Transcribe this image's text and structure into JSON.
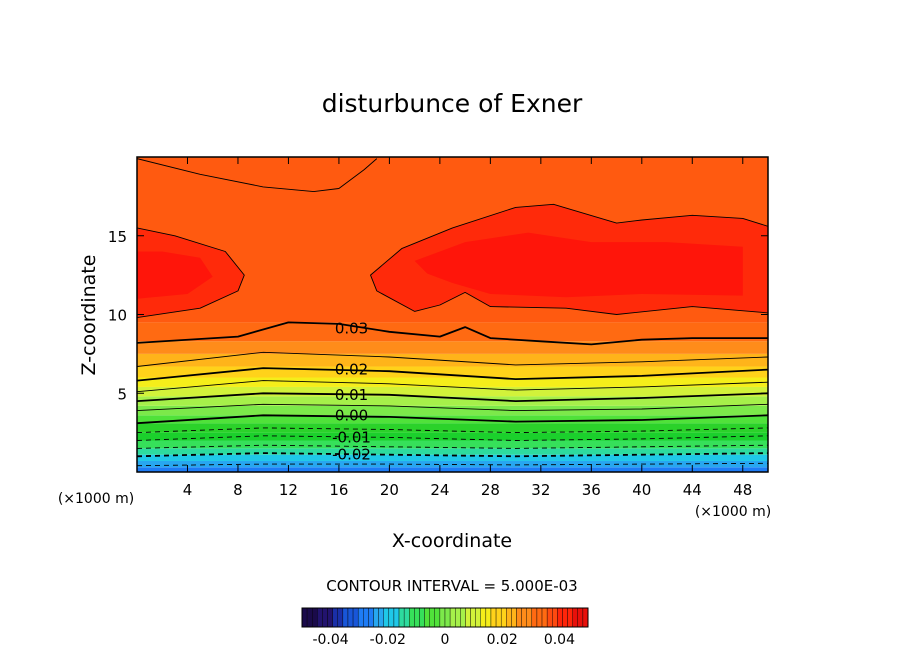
{
  "chart_data": {
    "type": "contour",
    "title": "disturbunce of Exner",
    "xlabel": "X-coordinate",
    "ylabel": "Z-coordinate",
    "x_unit_left": "(×1000 m)",
    "x_unit_right": "(×1000 m)",
    "xlim": [
      0,
      50
    ],
    "ylim": [
      0,
      20
    ],
    "x_ticks": [
      4,
      8,
      12,
      16,
      20,
      24,
      28,
      32,
      36,
      40,
      44,
      48
    ],
    "y_ticks": [
      5,
      10,
      15
    ],
    "contour_interval_text": "CONTOUR INTERVAL = 5.000E-03",
    "contour_labels": [
      {
        "text": "0.03",
        "x": 17.0,
        "z": 9.1
      },
      {
        "text": "0.02",
        "x": 17.0,
        "z": 6.5
      },
      {
        "text": "0.01",
        "x": 17.0,
        "z": 4.9
      },
      {
        "text": "0.00",
        "x": 17.0,
        "z": 3.6
      },
      {
        "text": "-0.01",
        "x": 17.0,
        "z": 2.2
      },
      {
        "text": "-0.02",
        "x": 17.0,
        "z": 1.1
      }
    ],
    "contour_lines": [
      {
        "level": -0.025,
        "style": "dashed",
        "weight": "thin",
        "x": [
          0,
          10,
          20,
          30,
          40,
          50
        ],
        "z": [
          0.4,
          0.5,
          0.5,
          0.45,
          0.5,
          0.55
        ]
      },
      {
        "level": -0.02,
        "style": "dashed",
        "weight": "bold",
        "x": [
          0,
          10,
          20,
          30,
          40,
          50
        ],
        "z": [
          1.0,
          1.2,
          1.1,
          1.0,
          1.1,
          1.2
        ]
      },
      {
        "level": -0.015,
        "style": "dashed",
        "weight": "thin",
        "x": [
          0,
          10,
          20,
          30,
          40,
          50
        ],
        "z": [
          1.5,
          1.7,
          1.6,
          1.5,
          1.6,
          1.7
        ]
      },
      {
        "level": -0.01,
        "style": "dashed",
        "weight": "thin",
        "x": [
          0,
          10,
          20,
          30,
          40,
          50
        ],
        "z": [
          2.0,
          2.3,
          2.2,
          2.0,
          2.1,
          2.3
        ]
      },
      {
        "level": -0.005,
        "style": "dashed",
        "weight": "thin",
        "x": [
          0,
          10,
          20,
          30,
          40,
          50
        ],
        "z": [
          2.5,
          2.8,
          2.7,
          2.5,
          2.6,
          2.8
        ]
      },
      {
        "level": 0.0,
        "style": "solid",
        "weight": "bold",
        "x": [
          0,
          10,
          20,
          30,
          40,
          50
        ],
        "z": [
          3.1,
          3.6,
          3.5,
          3.2,
          3.3,
          3.6
        ]
      },
      {
        "level": 0.005,
        "style": "solid",
        "weight": "thin",
        "x": [
          0,
          10,
          20,
          30,
          40,
          50
        ],
        "z": [
          3.9,
          4.3,
          4.2,
          3.9,
          4.0,
          4.3
        ]
      },
      {
        "level": 0.01,
        "style": "solid",
        "weight": "bold",
        "x": [
          0,
          10,
          20,
          30,
          40,
          50
        ],
        "z": [
          4.5,
          5.0,
          4.9,
          4.5,
          4.7,
          5.0
        ]
      },
      {
        "level": 0.015,
        "style": "solid",
        "weight": "thin",
        "x": [
          0,
          10,
          20,
          30,
          40,
          50
        ],
        "z": [
          5.1,
          5.8,
          5.6,
          5.2,
          5.4,
          5.7
        ]
      },
      {
        "level": 0.02,
        "style": "solid",
        "weight": "bold",
        "x": [
          0,
          10,
          20,
          30,
          40,
          50
        ],
        "z": [
          5.8,
          6.6,
          6.4,
          5.9,
          6.1,
          6.5
        ]
      },
      {
        "level": 0.025,
        "style": "solid",
        "weight": "thin",
        "x": [
          0,
          10,
          20,
          30,
          40,
          50
        ],
        "z": [
          6.7,
          7.6,
          7.3,
          6.8,
          7.0,
          7.3
        ]
      },
      {
        "level": 0.03,
        "style": "solid",
        "weight": "bold",
        "x": [
          0,
          8,
          12,
          16,
          20,
          24,
          26,
          28,
          32,
          36,
          40,
          44,
          50
        ],
        "z": [
          8.2,
          8.6,
          9.5,
          9.4,
          8.9,
          8.6,
          9.2,
          8.5,
          8.3,
          8.1,
          8.4,
          8.5,
          8.5
        ]
      },
      {
        "level": 0.035,
        "style": "solid",
        "weight": "thin",
        "x": [
          0,
          5,
          8,
          8.5,
          7,
          3,
          0
        ],
        "z": [
          9.8,
          10.4,
          11.5,
          12.5,
          14.0,
          15.0,
          15.5
        ]
      },
      {
        "level": 0.035,
        "style": "solid",
        "weight": "thin",
        "x": [
          50,
          44,
          38,
          34,
          28,
          26,
          24,
          22,
          19,
          18.5,
          21,
          25,
          30,
          33,
          38,
          40,
          44,
          48,
          50
        ],
        "z": [
          10.1,
          10.5,
          10.0,
          10.4,
          10.5,
          11.4,
          10.6,
          10.2,
          11.5,
          12.5,
          14.2,
          15.5,
          16.8,
          17.0,
          15.8,
          16.0,
          16.3,
          16.1,
          15.6
        ]
      },
      {
        "level": 0.035,
        "style": "solid",
        "weight": "thin",
        "x": [
          0,
          5,
          10,
          14,
          16,
          18,
          19
        ],
        "z": [
          19.9,
          18.9,
          18.1,
          17.8,
          18.0,
          19.2,
          19.9
        ]
      }
    ],
    "field_bands": [
      {
        "z_max": 0.3,
        "color": "#1e7cf5"
      },
      {
        "z_max": 0.7,
        "color": "#27a7f0"
      },
      {
        "z_max": 1.1,
        "color": "#1fc8e8"
      },
      {
        "z_max": 1.5,
        "color": "#2ddb9e"
      },
      {
        "z_max": 2.0,
        "color": "#36e05a"
      },
      {
        "z_max": 2.5,
        "color": "#1bd02c"
      },
      {
        "z_max": 3.1,
        "color": "#2bd22a"
      },
      {
        "z_max": 3.6,
        "color": "#50e23a"
      },
      {
        "z_max": 4.2,
        "color": "#7ce94a"
      },
      {
        "z_max": 4.8,
        "color": "#a6f04a"
      },
      {
        "z_max": 5.4,
        "color": "#d2f23a"
      },
      {
        "z_max": 6.0,
        "color": "#f5ee1a"
      },
      {
        "z_max": 6.7,
        "color": "#ffd21a"
      },
      {
        "z_max": 7.5,
        "color": "#ffb41a"
      },
      {
        "z_max": 8.3,
        "color": "#ff8c1a"
      },
      {
        "z_max": 9.5,
        "color": "#ff6a12"
      },
      {
        "z_max": 20.0,
        "color": "#ff5a10"
      }
    ],
    "field_regions": [
      {
        "level": 0.035,
        "color": "#ff2a0a"
      },
      {
        "level": 0.04,
        "color": "#ff150a"
      }
    ],
    "colorbar": {
      "min": -0.05,
      "max": 0.05,
      "ticks": [
        -0.04,
        -0.02,
        0,
        0.02,
        0.04
      ],
      "tick_labels": [
        "-0.04",
        "-0.02",
        "0",
        "0.02",
        "0.04"
      ],
      "colors": [
        "#1a0a4a",
        "#22136e",
        "#1a2fa8",
        "#1856d8",
        "#1e7cf5",
        "#27a7f0",
        "#1fc8e8",
        "#2ddb9e",
        "#36e05a",
        "#50e23a",
        "#7ce94a",
        "#a6f04a",
        "#d2f23a",
        "#f5ee1a",
        "#ffd21a",
        "#ffb41a",
        "#ff8c1a",
        "#ff6a12",
        "#ff4a10",
        "#ff250a",
        "#e8100a"
      ]
    }
  }
}
